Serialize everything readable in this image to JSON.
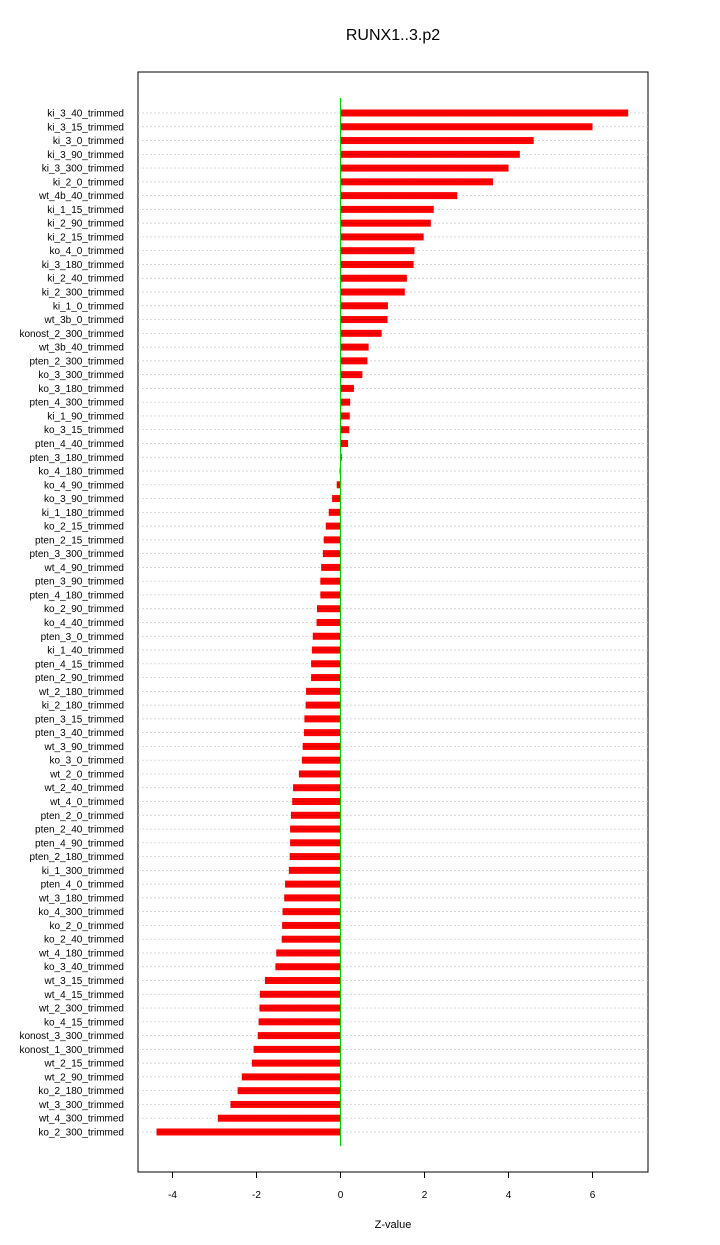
{
  "chart_data": {
    "type": "bar",
    "orientation": "horizontal",
    "title": "RUNX1..3.p2",
    "xlabel": "Z-value",
    "ylabel": "",
    "xlim": [
      -4.8,
      7.3
    ],
    "xticks": [
      -4,
      -2,
      0,
      2,
      4,
      6
    ],
    "grid": true,
    "bar_color": "#ff0000",
    "zero_line_color": "#00cc00",
    "categories": [
      "ki_3_40_trimmed",
      "ki_3_15_trimmed",
      "ki_3_0_trimmed",
      "ki_3_90_trimmed",
      "ki_3_300_trimmed",
      "ki_2_0_trimmed",
      "wt_4b_40_trimmed",
      "ki_1_15_trimmed",
      "ki_2_90_trimmed",
      "ki_2_15_trimmed",
      "ko_4_0_trimmed",
      "ki_3_180_trimmed",
      "ki_2_40_trimmed",
      "ki_2_300_trimmed",
      "ki_1_0_trimmed",
      "wt_3b_0_trimmed",
      "konost_2_300_trimmed",
      "wt_3b_40_trimmed",
      "pten_2_300_trimmed",
      "ko_3_300_trimmed",
      "ko_3_180_trimmed",
      "pten_4_300_trimmed",
      "ki_1_90_trimmed",
      "ko_3_15_trimmed",
      "pten_4_40_trimmed",
      "pten_3_180_trimmed",
      "ko_4_180_trimmed",
      "ko_4_90_trimmed",
      "ko_3_90_trimmed",
      "ki_1_180_trimmed",
      "ko_2_15_trimmed",
      "pten_2_15_trimmed",
      "pten_3_300_trimmed",
      "wt_4_90_trimmed",
      "pten_3_90_trimmed",
      "pten_4_180_trimmed",
      "ko_2_90_trimmed",
      "ko_4_40_trimmed",
      "pten_3_0_trimmed",
      "ki_1_40_trimmed",
      "pten_4_15_trimmed",
      "pten_2_90_trimmed",
      "wt_2_180_trimmed",
      "ki_2_180_trimmed",
      "pten_3_15_trimmed",
      "pten_3_40_trimmed",
      "wt_3_90_trimmed",
      "ko_3_0_trimmed",
      "wt_2_0_trimmed",
      "wt_2_40_trimmed",
      "wt_4_0_trimmed",
      "pten_2_0_trimmed",
      "pten_2_40_trimmed",
      "pten_4_90_trimmed",
      "pten_2_180_trimmed",
      "ki_1_300_trimmed",
      "pten_4_0_trimmed",
      "wt_3_180_trimmed",
      "ko_4_300_trimmed",
      "ko_2_0_trimmed",
      "ko_2_40_trimmed",
      "wt_4_180_trimmed",
      "ko_3_40_trimmed",
      "wt_3_15_trimmed",
      "wt_4_15_trimmed",
      "wt_2_300_trimmed",
      "ko_4_15_trimmed",
      "konost_3_300_trimmed",
      "konost_1_300_trimmed",
      "wt_2_15_trimmed",
      "wt_2_90_trimmed",
      "ko_2_180_trimmed",
      "wt_3_300_trimmed",
      "wt_4_300_trimmed",
      "ko_2_300_trimmed"
    ],
    "values": [
      6.85,
      6.0,
      4.6,
      4.27,
      4.0,
      3.63,
      2.78,
      2.22,
      2.15,
      1.98,
      1.76,
      1.74,
      1.58,
      1.53,
      1.13,
      1.12,
      0.98,
      0.67,
      0.64,
      0.52,
      0.32,
      0.23,
      0.22,
      0.21,
      0.18,
      0.03,
      -0.02,
      -0.09,
      -0.2,
      -0.28,
      -0.35,
      -0.4,
      -0.42,
      -0.46,
      -0.48,
      -0.48,
      -0.56,
      -0.57,
      -0.66,
      -0.68,
      -0.7,
      -0.7,
      -0.82,
      -0.83,
      -0.86,
      -0.87,
      -0.9,
      -0.92,
      -0.99,
      -1.13,
      -1.15,
      -1.18,
      -1.2,
      -1.2,
      -1.21,
      -1.23,
      -1.32,
      -1.34,
      -1.38,
      -1.39,
      -1.4,
      -1.53,
      -1.55,
      -1.8,
      -1.92,
      -1.93,
      -1.95,
      -1.97,
      -2.07,
      -2.11,
      -2.35,
      -2.45,
      -2.62,
      -2.92,
      -4.38
    ]
  }
}
